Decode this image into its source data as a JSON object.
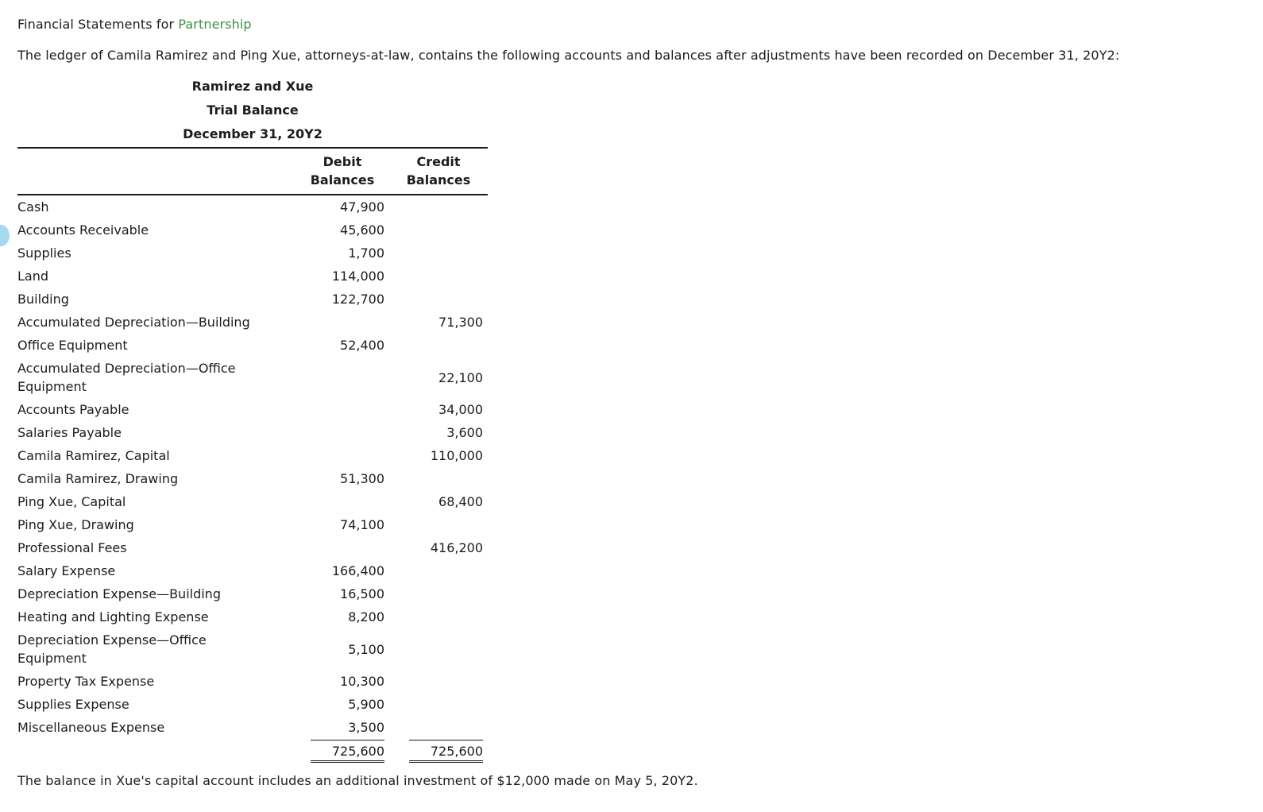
{
  "header": {
    "title_prefix": "Financial Statements for ",
    "title_link": "Partnership",
    "intro": "The ledger of Camila Ramirez and Ping Xue, attorneys-at-law, contains the following accounts and balances after adjustments have been recorded on December 31, 20Y2:"
  },
  "trial_balance": {
    "title": "Ramirez and Xue",
    "subtitle": "Trial Balance",
    "date": "December 31, 20Y2",
    "columns": {
      "debit": "Debit\nBalances",
      "credit": "Credit\nBalances"
    },
    "rows": [
      {
        "account": "Cash",
        "debit": "47,900",
        "credit": ""
      },
      {
        "account": "Accounts Receivable",
        "debit": "45,600",
        "credit": ""
      },
      {
        "account": "Supplies",
        "debit": "1,700",
        "credit": ""
      },
      {
        "account": "Land",
        "debit": "114,000",
        "credit": ""
      },
      {
        "account": "Building",
        "debit": "122,700",
        "credit": ""
      },
      {
        "account": "Accumulated Depreciation—Building",
        "debit": "",
        "credit": "71,300"
      },
      {
        "account": "Office Equipment",
        "debit": "52,400",
        "credit": ""
      },
      {
        "account": "Accumulated Depreciation—Office\nEquipment",
        "debit": "",
        "credit": "22,100"
      },
      {
        "account": "Accounts Payable",
        "debit": "",
        "credit": "34,000"
      },
      {
        "account": "Salaries Payable",
        "debit": "",
        "credit": "3,600"
      },
      {
        "account": "Camila Ramirez, Capital",
        "debit": "",
        "credit": "110,000"
      },
      {
        "account": "Camila Ramirez, Drawing",
        "debit": "51,300",
        "credit": ""
      },
      {
        "account": "Ping Xue, Capital",
        "debit": "",
        "credit": "68,400"
      },
      {
        "account": "Ping Xue, Drawing",
        "debit": "74,100",
        "credit": ""
      },
      {
        "account": "Professional Fees",
        "debit": "",
        "credit": "416,200"
      },
      {
        "account": "Salary Expense",
        "debit": "166,400",
        "credit": ""
      },
      {
        "account": "Depreciation Expense—Building",
        "debit": "16,500",
        "credit": ""
      },
      {
        "account": "Heating and Lighting Expense",
        "debit": "8,200",
        "credit": ""
      },
      {
        "account": "Depreciation Expense—Office\nEquipment",
        "debit": "5,100",
        "credit": ""
      },
      {
        "account": "Property Tax Expense",
        "debit": "10,300",
        "credit": ""
      },
      {
        "account": "Supplies Expense",
        "debit": "5,900",
        "credit": ""
      },
      {
        "account": "Miscellaneous Expense",
        "debit": "3,500",
        "credit": ""
      }
    ],
    "totals": {
      "debit": "725,600",
      "credit": "725,600"
    }
  },
  "footer": {
    "note": "The balance in Xue's capital account includes an additional investment of $12,000 made on May 5, 20Y2."
  },
  "colors": {
    "link_green": "#3f9142",
    "text": "#1c1c1c",
    "edge_marker": "#a6d9ee"
  }
}
